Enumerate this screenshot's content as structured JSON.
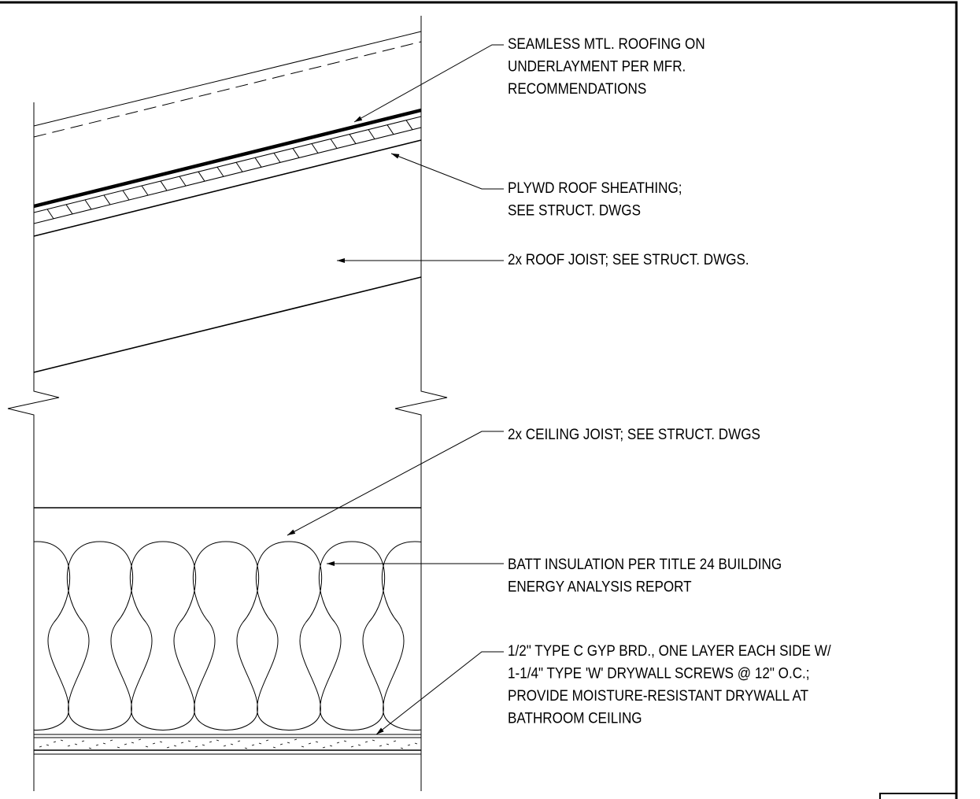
{
  "labels": [
    {
      "lines": [
        "SEAMLESS MTL. ROOFING ON",
        "UNDERLAYMENT PER MFR.",
        "RECOMMENDATIONS"
      ]
    },
    {
      "lines": [
        "PLYWD ROOF SHEATHING;",
        "SEE STRUCT. DWGS"
      ]
    },
    {
      "lines": [
        "2x ROOF JOIST; SEE STRUCT. DWGS."
      ]
    },
    {
      "lines": [
        "2x CEILING JOIST; SEE STRUCT. DWGS"
      ]
    },
    {
      "lines": [
        "BATT INSULATION PER TITLE 24 BUILDING",
        "ENERGY ANALYSIS REPORT"
      ]
    },
    {
      "lines": [
        "1/2\" TYPE C GYP BRD., ONE LAYER EACH SIDE W/",
        "1-1/4\" TYPE 'W' DRYWALL SCREWS @ 12\" O.C.;",
        "PROVIDE MOISTURE-RESISTANT DRYWALL AT",
        "BATHROOM CEILING"
      ]
    }
  ]
}
